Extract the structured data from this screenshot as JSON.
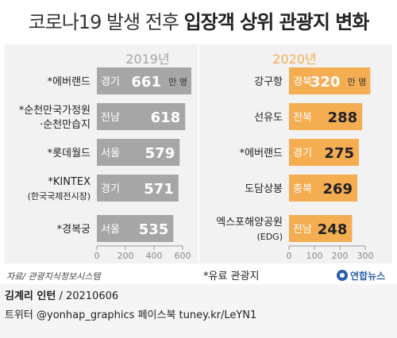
{
  "title": {
    "normal": "코로나19 발생 전후",
    "bold": "입장객 상위 관광지 변화"
  },
  "chart_data": [
    {
      "type": "bar",
      "title": "2019년",
      "orientation": "horizontal",
      "categories": [
        "*에버랜드",
        "*순천만국가정원·순천만습지",
        "*롯데월드",
        "*KINTEX(한국국제전시장)",
        "*경복궁"
      ],
      "category_lines": [
        [
          "*에버랜드"
        ],
        [
          "*순천만국가정원",
          "·순천만습지"
        ],
        [
          "*롯데월드"
        ],
        [
          "*KINTEX",
          "(한국국제전시장)"
        ],
        [
          "*경복궁"
        ]
      ],
      "regions": [
        "경기",
        "전남",
        "서울",
        "경기",
        "서울"
      ],
      "values": [
        661,
        618,
        579,
        571,
        535
      ],
      "value_labels": [
        "661",
        "618",
        "579",
        "571",
        "535"
      ],
      "unit_first": "만 명",
      "xlim": [
        0,
        600
      ],
      "ticks": [
        "0",
        "200",
        "400",
        "600"
      ],
      "bar_color": "#a6a6a6"
    },
    {
      "type": "bar",
      "title": "2020년",
      "orientation": "horizontal",
      "categories": [
        "강구항",
        "선유도",
        "*에버랜드",
        "도담상봉",
        "엑스포해양공원(EDG)"
      ],
      "category_lines": [
        [
          "강구항"
        ],
        [
          "선유도"
        ],
        [
          "*에버랜드"
        ],
        [
          "도담상봉"
        ],
        [
          "엑스포해양공원",
          "(EDG)"
        ]
      ],
      "regions": [
        "경북",
        "전북",
        "경기",
        "충북",
        "전남"
      ],
      "values": [
        320,
        288,
        275,
        269,
        248
      ],
      "value_labels": [
        "320",
        "288",
        "275",
        "269",
        "248"
      ],
      "unit_first": "만 명",
      "xlim": [
        0,
        300
      ],
      "ticks": [
        "0",
        "100",
        "200",
        "300"
      ],
      "bar_color": "#f5ad52"
    }
  ],
  "source": "자료/ 관광지식정보시스템",
  "note": "*유료 관광지",
  "logo": "연합뉴스",
  "author": {
    "name": "김계리 인턴",
    "rest": " / 20210606"
  },
  "links": "트위터 @yonhap_graphics  페이스북 tuney.kr/LeYN1",
  "colors": {
    "year2019": "#a6a6a6",
    "year2020": "#f5ad52",
    "logo": "#2a5fa8"
  }
}
